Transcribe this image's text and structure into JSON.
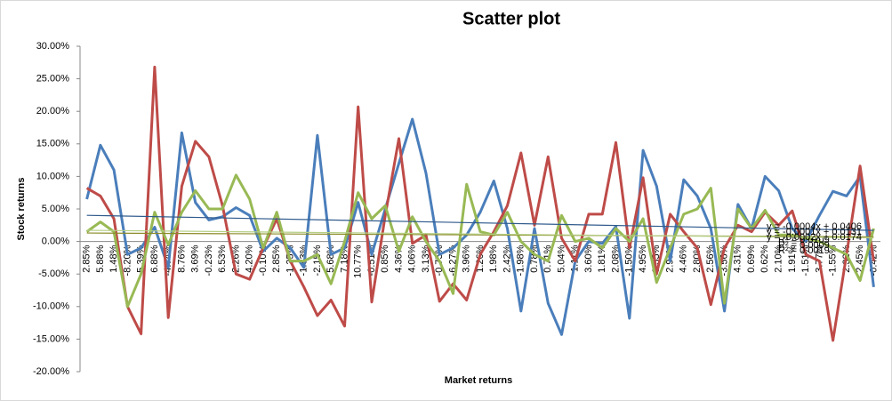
{
  "chart_data": {
    "type": "line",
    "title": "Scatter plot",
    "x_label": "Market returns",
    "y_label": "Stock returns",
    "categories": [
      "2.85%",
      "5.88%",
      "1.48%",
      "-8.20%",
      "-5.39%",
      "6.88%",
      "-4.74%",
      "8.76%",
      "3.69%",
      "-0.23%",
      "6.53%",
      "2.26%",
      "4.20%",
      "-0.10%",
      "2.85%",
      "-1.35%",
      "-1.83%",
      "-2.15%",
      "5.68%",
      "7.18%",
      "10.77%",
      "-0.51%",
      "0.85%",
      "4.36%",
      "4.06%",
      "3.13%",
      "-0.75%",
      "-6.27%",
      "3.96%",
      "1.26%",
      "1.98%",
      "2.42%",
      "-1.98%",
      "0.78%",
      "0.71%",
      "5.04%",
      "1.11%",
      "3.60%",
      "1.81%",
      "2.08%",
      "-1.50%",
      "4.95%",
      "-3.35%",
      "2.97%",
      "4.46%",
      "2.80%",
      "2.56%",
      "-3.56%",
      "4.31%",
      "0.69%",
      "0.62%",
      "2.10%",
      "1.91%",
      "-1.51%",
      "3.77%",
      "-1.55%",
      "2.32%",
      "2.45%",
      "-0.42%"
    ],
    "series": [
      {
        "color": "#4a7ebb",
        "values": [
          6.5,
          14.8,
          11,
          -2,
          -1,
          2.2,
          -4,
          16.7,
          6,
          3.3,
          3.8,
          5.2,
          4,
          -1.5,
          0.5,
          -1,
          -4,
          16.3,
          -2,
          -1,
          6,
          -2,
          5,
          12,
          18.8,
          10.5,
          -2,
          -1,
          1,
          4.5,
          9.3,
          2,
          -10.7,
          2,
          -9.5,
          -14.3,
          -3,
          0,
          -0.3,
          2.3,
          -11.8,
          14,
          8.5,
          -3,
          9.5,
          7,
          2,
          -10.7,
          5.7,
          2,
          10,
          7.8,
          2,
          0,
          4,
          7.7,
          7,
          10,
          -7
        ]
      },
      {
        "color": "#be4b48",
        "values": [
          8.2,
          7,
          3.5,
          -10,
          -14.2,
          26.8,
          -11.7,
          8.5,
          15.4,
          13,
          5.5,
          -5,
          -5.8,
          -1,
          3.5,
          -3,
          -7,
          -11.4,
          -9,
          -13,
          20.7,
          -9.3,
          4,
          15.8,
          -0.3,
          1,
          -9.2,
          -6.5,
          -9,
          -2,
          1.5,
          5.5,
          13.6,
          2.5,
          13,
          0.5,
          -3,
          4.2,
          4.2,
          15.2,
          -1,
          9.8,
          -5,
          4.2,
          1.5,
          -1,
          -9.7,
          -1,
          2.5,
          1.5,
          4.5,
          2.5,
          4.7,
          -2,
          -3,
          -15.2,
          -2,
          11.6,
          -3
        ]
      },
      {
        "color": "#98b954",
        "values": [
          1.5,
          3,
          1.5,
          -10,
          -5,
          4.5,
          -0.5,
          4.5,
          7.8,
          5,
          5,
          10.2,
          6.5,
          -1,
          4.5,
          -3,
          -3,
          -2,
          -6.5,
          0,
          7.5,
          3.5,
          5.5,
          -1.5,
          3.8,
          0,
          -3,
          -8,
          8.8,
          1.5,
          1,
          4.5,
          0,
          -2,
          -3,
          4,
          0,
          0.5,
          -1,
          2,
          0,
          3.5,
          -6.3,
          -1,
          4.2,
          5,
          8.2,
          -9.5,
          5,
          2,
          4.8,
          1,
          1,
          0.5,
          0,
          -1,
          -2,
          -6,
          2
        ]
      }
    ],
    "trendlines": [
      {
        "color": "#2f5a8c",
        "slope": -0.04,
        "intercept": 4.06,
        "equation": "y = -0.0004x + 0.0406",
        "r2": "R² = 0.0109"
      },
      {
        "color": "#8c8c2a",
        "slope": -0.01,
        "intercept": 1.31,
        "equation": "y = -0.0001x + 0.0131",
        "r2": "R² = 0.0009"
      },
      {
        "color": "#b5cf85",
        "slope": -0.02,
        "intercept": 1.74,
        "equation": "y = -0.0002x + 0.0174",
        "r2": "R² = 0.0019"
      }
    ],
    "ylim": [
      -20,
      30
    ],
    "yticks": [
      {
        "value": -20,
        "label": "-20.00%"
      },
      {
        "value": -15,
        "label": "-15.00%"
      },
      {
        "value": -10,
        "label": "-10.00%"
      },
      {
        "value": -5,
        "label": "-5.00%"
      },
      {
        "value": 0,
        "label": "0.00%"
      },
      {
        "value": 5,
        "label": "5.00%"
      },
      {
        "value": 10,
        "label": "10.00%"
      },
      {
        "value": 15,
        "label": "15.00%"
      },
      {
        "value": 20,
        "label": "20.00%"
      },
      {
        "value": 25,
        "label": "25.00%"
      },
      {
        "value": 30,
        "label": "30.00%"
      }
    ],
    "grid": false
  }
}
